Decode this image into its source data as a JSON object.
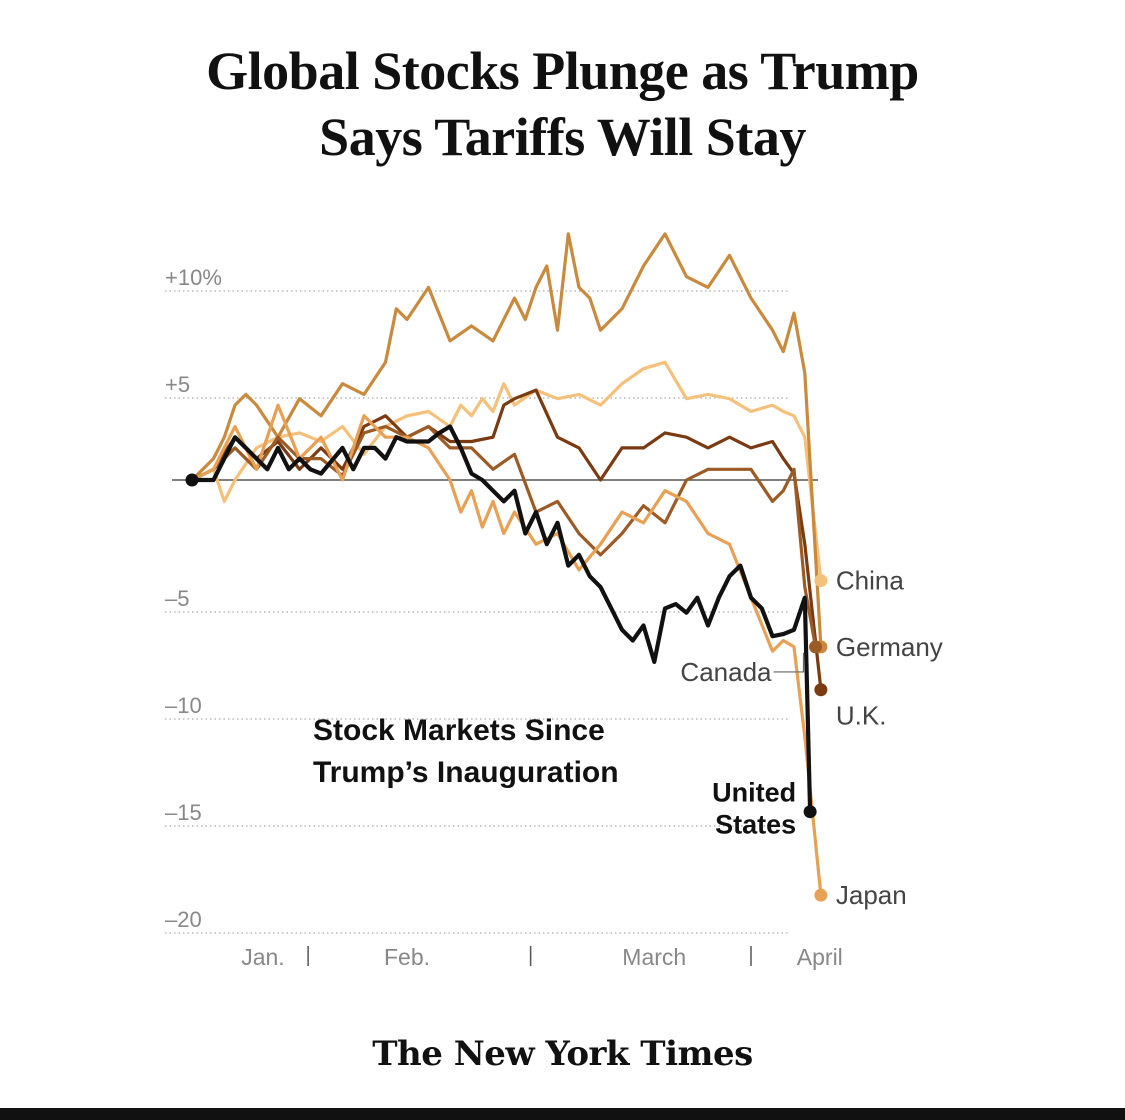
{
  "headline": {
    "line1": "Global Stocks Plunge as Trump",
    "line2": "Says Tariffs Will Stay"
  },
  "publisher": "The New York Times",
  "chart_data": {
    "type": "line",
    "title": "Stock Markets Since",
    "title_line2": "Trump’s Inauguration",
    "ylabel": "",
    "xlabel": "",
    "ylim": [
      -20,
      10
    ],
    "xlim": [
      0,
      60
    ],
    "y_ticks": [
      {
        "value": 10,
        "label": "+10%"
      },
      {
        "value": 5,
        "label": "+5"
      },
      {
        "value": 0,
        "label": ""
      },
      {
        "value": -5,
        "label": "–5"
      },
      {
        "value": -10,
        "label": "–10"
      },
      {
        "value": -15,
        "label": "–15"
      },
      {
        "value": -20,
        "label": "–20"
      }
    ],
    "x_labels": [
      {
        "x": 6.6,
        "label": "Jan."
      },
      {
        "x": 20.0,
        "label": "Feb."
      },
      {
        "x": 43.0,
        "label": "March"
      },
      {
        "x": 58.4,
        "label": "April"
      }
    ],
    "x_month_ticks": [
      10.8,
      31.5,
      52.0
    ],
    "colors": {
      "china": "#f5c07a",
      "germany": "#c98a3e",
      "uk": "#7a3a12",
      "canada": "#9c5a24",
      "japan": "#e8a055",
      "us": "#111111",
      "zero_line": "#555555",
      "grid": "#aaaaaa",
      "tick_label": "#888888"
    },
    "series": [
      {
        "name": "China",
        "key": "china",
        "x": [
          0,
          2,
          3,
          4,
          6,
          8,
          10,
          12,
          14,
          16,
          18,
          20,
          22,
          24,
          25,
          26,
          27,
          28,
          29,
          30,
          32,
          34,
          36,
          38,
          40,
          42,
          44,
          46,
          48,
          50,
          52,
          54,
          55,
          56,
          57,
          58.5
        ],
        "values": [
          0,
          0.5,
          -1,
          0,
          1.5,
          2,
          2.2,
          1.8,
          2.5,
          1.2,
          2.5,
          3,
          3.2,
          2.5,
          3.5,
          3,
          3.8,
          3.2,
          4.5,
          3.5,
          4.2,
          3.8,
          4,
          3.5,
          4.5,
          5.2,
          5.5,
          3.8,
          4,
          3.8,
          3.2,
          3.5,
          3.2,
          3,
          2,
          -4.7
        ]
      },
      {
        "name": "Germany",
        "key": "germany",
        "x": [
          0,
          2,
          3,
          4,
          5,
          6,
          8,
          10,
          12,
          14,
          16,
          18,
          19,
          20,
          22,
          24,
          26,
          28,
          30,
          31,
          32,
          33,
          34,
          35,
          36,
          37,
          38,
          40,
          42,
          44,
          46,
          48,
          50,
          52,
          54,
          55,
          56,
          57,
          58.5
        ],
        "values": [
          0,
          1,
          2,
          3.5,
          4,
          3.5,
          2,
          3.8,
          3,
          4.5,
          4,
          5.5,
          8,
          7.5,
          9,
          6.5,
          7.2,
          6.5,
          8.5,
          7.5,
          9,
          10,
          7,
          11.5,
          9,
          8.5,
          7,
          8,
          10,
          11.5,
          9.5,
          9,
          10.5,
          8.5,
          7,
          6,
          7.8,
          5,
          -7.8
        ]
      },
      {
        "name": "U.K.",
        "key": "uk",
        "x": [
          0,
          2,
          4,
          6,
          8,
          10,
          12,
          14,
          16,
          18,
          20,
          22,
          24,
          26,
          28,
          29,
          30,
          32,
          34,
          36,
          38,
          40,
          42,
          44,
          46,
          48,
          50,
          52,
          54,
          55,
          56,
          57,
          58.5
        ],
        "values": [
          0,
          0.5,
          2,
          1,
          1.8,
          0.5,
          1.5,
          0.5,
          2.5,
          3,
          2,
          2.5,
          1.8,
          1.8,
          2,
          3.5,
          3.8,
          4.2,
          2,
          1.5,
          0,
          1.5,
          1.5,
          2.2,
          2,
          1.5,
          2,
          1.5,
          1.8,
          1,
          0.3,
          -3,
          -9.8
        ]
      },
      {
        "name": "Canada",
        "key": "canada",
        "x": [
          0,
          2,
          4,
          6,
          8,
          10,
          12,
          14,
          16,
          18,
          20,
          22,
          24,
          26,
          28,
          30,
          32,
          34,
          36,
          38,
          40,
          42,
          44,
          46,
          48,
          50,
          52,
          54,
          55,
          56,
          57,
          58
        ],
        "values": [
          0,
          0.5,
          1.5,
          0.5,
          2,
          1,
          1,
          0.2,
          2.2,
          2.5,
          2,
          2.5,
          1.5,
          1.5,
          0.5,
          1.2,
          -1.5,
          -1,
          -2.5,
          -3.5,
          -2.5,
          -1.2,
          -2,
          0,
          0.5,
          0.5,
          0.5,
          -1,
          -0.5,
          0.5,
          -5,
          -7.8
        ]
      },
      {
        "name": "Japan",
        "key": "japan",
        "x": [
          0,
          2,
          4,
          6,
          8,
          10,
          12,
          14,
          16,
          18,
          20,
          22,
          24,
          25,
          26,
          27,
          28,
          29,
          30,
          32,
          34,
          36,
          38,
          40,
          42,
          44,
          46,
          48,
          50,
          52,
          54,
          55,
          56,
          57,
          58.5
        ],
        "values": [
          0,
          0.5,
          2.5,
          0.5,
          3.5,
          1,
          2,
          0,
          3,
          2,
          2,
          1.5,
          0,
          -1.5,
          -0.5,
          -2.2,
          -1,
          -2.5,
          -1.5,
          -3,
          -2.5,
          -4.2,
          -3,
          -1.5,
          -2,
          -0.5,
          -1,
          -2.5,
          -3,
          -5.5,
          -8,
          -7.5,
          -7.8,
          -12,
          -19.4
        ]
      },
      {
        "name": "United States",
        "key": "us",
        "x": [
          0,
          1,
          2,
          4,
          5,
          6,
          7,
          8,
          9,
          10,
          11,
          12,
          14,
          15,
          16,
          17,
          18,
          19,
          20,
          21,
          22,
          23,
          24,
          25,
          26,
          27,
          28,
          29,
          30,
          31,
          32,
          33,
          34,
          35,
          36,
          37,
          38,
          39,
          40,
          41,
          42,
          43,
          44,
          45,
          46,
          47,
          48,
          49,
          50,
          51,
          52,
          53,
          54,
          55,
          56,
          57,
          57.5
        ],
        "values": [
          0,
          0,
          0,
          2,
          1.5,
          1,
          0.5,
          1.5,
          0.5,
          1,
          0.5,
          0.3,
          1.5,
          0.5,
          1.5,
          1.5,
          1,
          2,
          1.8,
          1.8,
          1.8,
          2.2,
          2.5,
          1.5,
          0.3,
          0,
          -0.5,
          -1,
          -0.5,
          -2.5,
          -1.5,
          -3,
          -2,
          -4,
          -3.5,
          -4.5,
          -5,
          -6,
          -7,
          -7.5,
          -6.8,
          -8.5,
          -6,
          -5.8,
          -6.2,
          -5.5,
          -6.8,
          -5.5,
          -4.5,
          -4,
          -5.5,
          -6,
          -7.3,
          -7.2,
          -7,
          -5.5,
          -15.5
        ]
      }
    ],
    "end_labels": [
      {
        "key": "china",
        "label": "China"
      },
      {
        "key": "germany",
        "label": "Germany"
      },
      {
        "key": "uk",
        "label": "U.K."
      },
      {
        "key": "canada",
        "label": "Canada"
      },
      {
        "key": "japan",
        "label": "Japan"
      },
      {
        "key": "us",
        "label": "United",
        "label2": "States"
      }
    ]
  }
}
